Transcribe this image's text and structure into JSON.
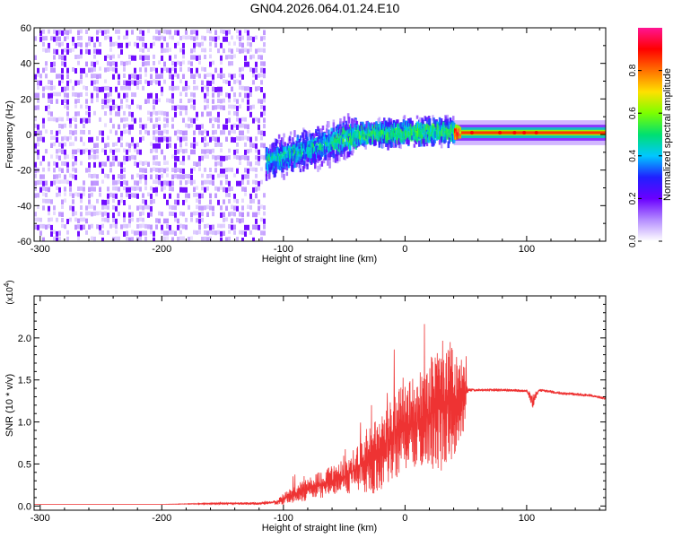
{
  "title": "GN04.2026.064.01.24.E10",
  "chart_data": [
    {
      "type": "heatmap",
      "xlabel": "Height of straight line (km)",
      "ylabel": "Frequency (Hz)",
      "xlim": [
        -305,
        165
      ],
      "ylim": [
        -60,
        60
      ],
      "x_ticks": [
        -300,
        -200,
        -100,
        0,
        100
      ],
      "x_tick_labels": [
        "-300",
        "-200",
        "-100",
        "0",
        "100"
      ],
      "y_ticks": [
        -60,
        -40,
        -20,
        0,
        20,
        40,
        60
      ],
      "y_tick_labels": [
        "-60",
        "-40",
        "-20",
        "0",
        "20",
        "40",
        "60"
      ],
      "colorbar": {
        "label": "Normalized spectral amplitude",
        "range": [
          0,
          1
        ],
        "ticks": [
          0.0,
          0.2,
          0.4,
          0.6,
          0.8
        ],
        "tick_labels": [
          "0.0",
          "0.2",
          "0.4",
          "0.6",
          "0.8"
        ],
        "colormap": [
          "#ffffff",
          "#b48cff",
          "#6a00ff",
          "#2020ff",
          "#00c8ff",
          "#00e070",
          "#7cff00",
          "#ffe000",
          "#ff7000",
          "#ff0000",
          "#ff1493"
        ]
      },
      "regions": [
        {
          "x_range": [
            -305,
            -115
          ],
          "freq_range": [
            -60,
            60
          ],
          "amplitude": [
            0.05,
            0.2
          ]
        },
        {
          "x_range": [
            -115,
            -40
          ],
          "freq_center": [
            -15,
            0
          ],
          "freq_spread": 12,
          "amplitude": [
            0.15,
            0.45
          ]
        },
        {
          "x_range": [
            -40,
            40
          ],
          "freq_center": [
            0,
            2
          ],
          "freq_spread": 8,
          "amplitude": [
            0.2,
            0.5
          ]
        },
        {
          "x_range": [
            40,
            165
          ],
          "freq_center": 1,
          "freq_spread": 3,
          "amplitude": [
            0.5,
            0.95
          ]
        }
      ],
      "grid": false
    },
    {
      "type": "line",
      "xlabel": "Height of straight line (km)",
      "ylabel": "SNR (10 * v/v)",
      "y_multiplier": "(x10^4)",
      "xlim": [
        -305,
        165
      ],
      "ylim": [
        -0.05,
        2.5
      ],
      "x_ticks": [
        -300,
        -200,
        -100,
        0,
        100
      ],
      "x_tick_labels": [
        "-300",
        "-200",
        "-100",
        "0",
        "100"
      ],
      "y_ticks": [
        0.0,
        0.5,
        1.0,
        1.5,
        2.0
      ],
      "y_tick_labels": [
        "0.0",
        "0.5",
        "1.0",
        "1.5",
        "2.0"
      ],
      "series": [
        {
          "color": "#ee3333",
          "x": [
            -305,
            -250,
            -200,
            -150,
            -120,
            -105,
            -100,
            -90,
            -80,
            -70,
            -60,
            -50,
            -40,
            -30,
            -20,
            -10,
            0,
            10,
            20,
            30,
            40,
            48,
            52,
            60,
            80,
            100,
            105,
            110,
            130,
            150,
            165
          ],
          "y": [
            0.02,
            0.02,
            0.02,
            0.03,
            0.03,
            0.05,
            0.08,
            0.15,
            0.2,
            0.25,
            0.3,
            0.35,
            0.45,
            0.55,
            0.6,
            0.8,
            0.95,
            1.0,
            1.1,
            1.2,
            1.25,
            1.3,
            1.38,
            1.38,
            1.38,
            1.37,
            1.25,
            1.38,
            1.34,
            1.32,
            1.28
          ],
          "noise_amplitude": [
            0,
            0,
            0,
            0.01,
            0.02,
            0.04,
            0.08,
            0.12,
            0.15,
            0.18,
            0.2,
            0.25,
            0.3,
            0.45,
            0.55,
            0.6,
            0.6,
            0.6,
            0.75,
            0.9,
            0.8,
            0.5,
            0.02,
            0.02,
            0.02,
            0.02,
            0.1,
            0.02,
            0.02,
            0.02,
            0.02
          ]
        }
      ],
      "grid": false
    }
  ]
}
